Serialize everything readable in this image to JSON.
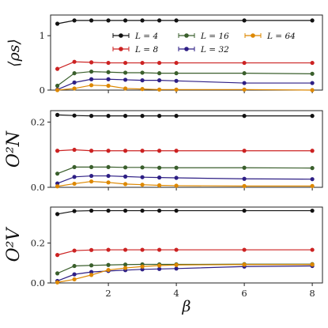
{
  "chart_data": {
    "type": "line",
    "x": [
      0.5,
      1,
      1.5,
      2,
      2.5,
      3,
      3.5,
      4,
      6,
      8
    ],
    "xlabel": "β",
    "xlim": [
      0.3,
      8.3
    ],
    "xticks": [
      2,
      4,
      6,
      8
    ],
    "xtick_labels": [
      "2",
      "4",
      "6",
      "8"
    ],
    "legend": {
      "placement": "top-right",
      "entries": [
        "L = 4",
        "L = 8",
        "L = 16",
        "L = 32",
        "L = 64"
      ]
    },
    "colors": {
      "L4": "#111111",
      "L8": "#cc2222",
      "L16": "#3a5f2c",
      "L32": "#2e1f85",
      "L64": "#dd8800"
    },
    "panels": [
      {
        "ylabel": "⟨ρs⟩",
        "ylim": [
          0,
          1.38
        ],
        "yticks": [
          0,
          1
        ],
        "ytick_labels": [
          "0",
          "1"
        ],
        "series": [
          {
            "name": "L = 4",
            "color": "#111111",
            "values": [
              1.22,
              1.28,
              1.28,
              1.28,
              1.28,
              1.28,
              1.28,
              1.28,
              1.28,
              1.28
            ]
          },
          {
            "name": "L = 8",
            "color": "#cc2222",
            "values": [
              0.39,
              0.52,
              0.51,
              0.5,
              0.5,
              0.5,
              0.5,
              0.5,
              0.5,
              0.5
            ]
          },
          {
            "name": "L = 16",
            "color": "#3a5f2c",
            "values": [
              0.08,
              0.31,
              0.34,
              0.33,
              0.32,
              0.32,
              0.31,
              0.31,
              0.31,
              0.3
            ]
          },
          {
            "name": "L = 32",
            "color": "#2e1f85",
            "values": [
              0.01,
              0.14,
              0.2,
              0.2,
              0.19,
              0.18,
              0.18,
              0.17,
              0.13,
              0.13
            ]
          },
          {
            "name": "L = 64",
            "color": "#dd8800",
            "values": [
              0.0,
              0.03,
              0.09,
              0.08,
              0.03,
              0.02,
              0.01,
              0.01,
              0.01,
              0.0
            ]
          }
        ]
      },
      {
        "ylabel": "O²N",
        "ylim": [
          0,
          0.235
        ],
        "yticks": [
          0,
          0.2
        ],
        "ytick_labels": [
          "0.0",
          "0.2"
        ],
        "series": [
          {
            "name": "L = 4",
            "color": "#111111",
            "values": [
              0.222,
              0.22,
              0.219,
              0.219,
              0.219,
              0.219,
              0.219,
              0.219,
              0.219,
              0.219
            ]
          },
          {
            "name": "L = 8",
            "color": "#cc2222",
            "values": [
              0.112,
              0.115,
              0.112,
              0.112,
              0.112,
              0.112,
              0.112,
              0.112,
              0.112,
              0.112
            ]
          },
          {
            "name": "L = 16",
            "color": "#3a5f2c",
            "values": [
              0.042,
              0.062,
              0.062,
              0.062,
              0.061,
              0.061,
              0.06,
              0.06,
              0.06,
              0.059
            ]
          },
          {
            "name": "L = 32",
            "color": "#2e1f85",
            "values": [
              0.012,
              0.032,
              0.035,
              0.035,
              0.033,
              0.031,
              0.03,
              0.029,
              0.026,
              0.025
            ]
          },
          {
            "name": "L = 64",
            "color": "#dd8800",
            "values": [
              0.003,
              0.011,
              0.018,
              0.015,
              0.01,
              0.008,
              0.006,
              0.005,
              0.004,
              0.004
            ]
          }
        ]
      },
      {
        "ylabel": "O²V",
        "ylim": [
          0,
          0.38
        ],
        "yticks": [
          0,
          0.2
        ],
        "ytick_labels": [
          "0.0",
          "0.2"
        ],
        "series": [
          {
            "name": "L = 4",
            "color": "#111111",
            "values": [
              0.345,
              0.36,
              0.362,
              0.362,
              0.362,
              0.362,
              0.362,
              0.362,
              0.362,
              0.362
            ]
          },
          {
            "name": "L = 8",
            "color": "#cc2222",
            "values": [
              0.14,
              0.162,
              0.165,
              0.166,
              0.166,
              0.166,
              0.166,
              0.166,
              0.166,
              0.166
            ]
          },
          {
            "name": "L = 16",
            "color": "#3a5f2c",
            "values": [
              0.048,
              0.085,
              0.088,
              0.09,
              0.092,
              0.093,
              0.093,
              0.093,
              0.094,
              0.094
            ]
          },
          {
            "name": "L = 32",
            "color": "#2e1f85",
            "values": [
              0.01,
              0.043,
              0.055,
              0.06,
              0.064,
              0.068,
              0.07,
              0.072,
              0.082,
              0.085
            ]
          },
          {
            "name": "L = 64",
            "color": "#dd8800",
            "values": [
              0.003,
              0.018,
              0.04,
              0.065,
              0.075,
              0.082,
              0.087,
              0.09,
              0.092,
              0.092
            ]
          }
        ]
      }
    ]
  }
}
